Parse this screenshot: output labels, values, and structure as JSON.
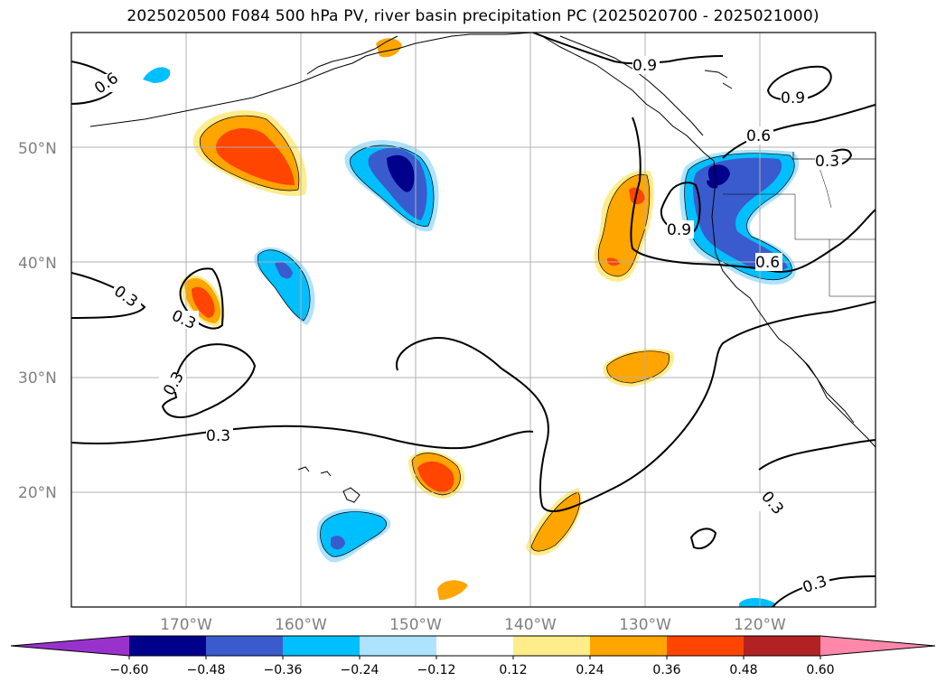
{
  "title": "2025020500 F084 500 hPa PV, river basin precipitation PC (2025020700 - 2025021000)",
  "map": {
    "lon_ticks": [
      "170°W",
      "160°W",
      "150°W",
      "140°W",
      "130°W",
      "120°W"
    ],
    "lat_ticks": [
      "50°N",
      "40°N",
      "30°N",
      "20°N"
    ],
    "lon_range": [
      -180,
      -110
    ],
    "lat_range": [
      10,
      60
    ],
    "gridlines": true,
    "contour_color": "#000000",
    "contour_labels": [
      "0.9",
      "0.9",
      "0.6",
      "0.6",
      "0.6",
      "0.3",
      "0.3",
      "0.3",
      "0.3",
      "0.3",
      "0.9",
      "0.3",
      "0.3"
    ]
  },
  "colorbar": {
    "ticks": [
      "−0.60",
      "−0.48",
      "−0.36",
      "−0.24",
      "−0.12",
      "0.12",
      "0.24",
      "0.36",
      "0.48",
      "0.60"
    ],
    "colors": [
      "#9932cc",
      "#00008b",
      "#3a5bcd",
      "#00bfff",
      "#aee3ff",
      "#ffffff",
      "#ffec8b",
      "#ffa500",
      "#ff4500",
      "#b22222",
      "#ff88aa"
    ]
  }
}
